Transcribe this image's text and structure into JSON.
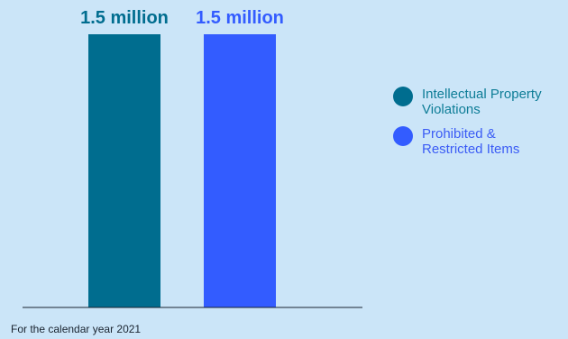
{
  "chart_data": {
    "type": "bar",
    "categories": [
      "Intellectual Property Violations",
      "Prohibited & Restricted Items"
    ],
    "values": [
      1500000,
      1500000
    ],
    "data_labels": [
      "1.5 million",
      "1.5 million"
    ],
    "title": "",
    "xlabel": "",
    "ylabel": "",
    "ylim": [
      0,
      1500000
    ],
    "grid": false,
    "legend_position": "right",
    "colors": [
      "#006d8f",
      "#335cff"
    ],
    "legend_text_colors": [
      "#0e7d97",
      "#3b5cf5"
    ],
    "footnote": "For the calendar year 2021"
  }
}
